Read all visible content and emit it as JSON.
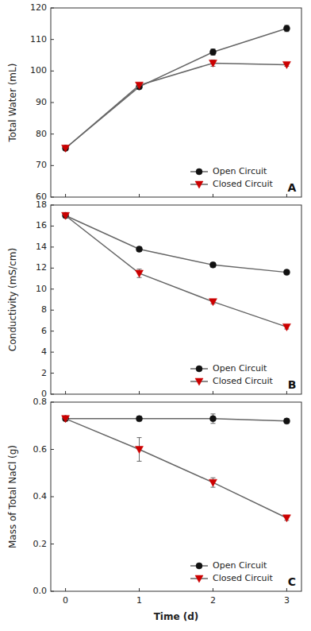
{
  "chart_data": [
    {
      "type": "line",
      "ylabel": "Total Water (mL)",
      "annotation": "A",
      "x": [
        0,
        1,
        2,
        3
      ],
      "xlim": [
        -0.2,
        3.2
      ],
      "xticks": [
        0,
        1,
        2,
        3
      ],
      "ylim": [
        60,
        120
      ],
      "yticks": [
        60,
        70,
        80,
        90,
        100,
        110,
        120
      ],
      "tick_labels": "y",
      "legend": "lower right",
      "series": [
        {
          "name": "Open Circuit",
          "color": "#111111",
          "marker": "circle",
          "values": [
            75.5,
            95.0,
            106.0,
            113.5
          ],
          "errors": [
            0,
            0,
            1.0,
            1.0
          ]
        },
        {
          "name": "Closed Circuit",
          "color": "#cc0000",
          "marker": "triangle-down",
          "values": [
            75.5,
            95.5,
            102.5,
            102.0
          ],
          "errors": [
            0,
            0,
            1.0,
            0.5
          ]
        }
      ]
    },
    {
      "type": "line",
      "ylabel": "Conductivity (mS/cm)",
      "annotation": "B",
      "x": [
        0,
        1,
        2,
        3
      ],
      "xlim": [
        -0.2,
        3.2
      ],
      "xticks": [
        0,
        1,
        2,
        3
      ],
      "ylim": [
        0,
        18
      ],
      "yticks": [
        0,
        2,
        4,
        6,
        8,
        10,
        12,
        14,
        16,
        18
      ],
      "tick_labels": "y",
      "legend": "lower right",
      "series": [
        {
          "name": "Open Circuit",
          "color": "#111111",
          "marker": "circle",
          "values": [
            17.0,
            13.8,
            12.3,
            11.6
          ],
          "errors": [
            0,
            0.2,
            0.2,
            0
          ]
        },
        {
          "name": "Closed Circuit",
          "color": "#cc0000",
          "marker": "triangle-down",
          "values": [
            17.0,
            11.5,
            8.8,
            6.4
          ],
          "errors": [
            0,
            0.4,
            0.2,
            0.2
          ]
        }
      ]
    },
    {
      "type": "line",
      "ylabel": "Mass of Total NaCl (g)",
      "xlabel": "Time (d)",
      "annotation": "C",
      "x": [
        0,
        1,
        2,
        3
      ],
      "xlim": [
        -0.2,
        3.2
      ],
      "xticks": [
        0,
        1,
        2,
        3
      ],
      "ylim": [
        0.0,
        0.8
      ],
      "yticks": [
        {
          "value": 0.0,
          "label": "0.0"
        },
        0.2,
        0.4,
        0.6,
        0.8
      ],
      "legend": "lower right",
      "series": [
        {
          "name": "Open Circuit",
          "color": "#111111",
          "marker": "circle",
          "values": [
            0.73,
            0.73,
            0.73,
            0.72
          ],
          "errors": [
            0,
            0.01,
            0.02,
            0.01
          ]
        },
        {
          "name": "Closed Circuit",
          "color": "#cc0000",
          "marker": "triangle-down",
          "values": [
            0.73,
            0.6,
            0.46,
            0.31
          ],
          "errors": [
            0,
            0.05,
            0.02,
            0.01
          ]
        }
      ]
    }
  ]
}
